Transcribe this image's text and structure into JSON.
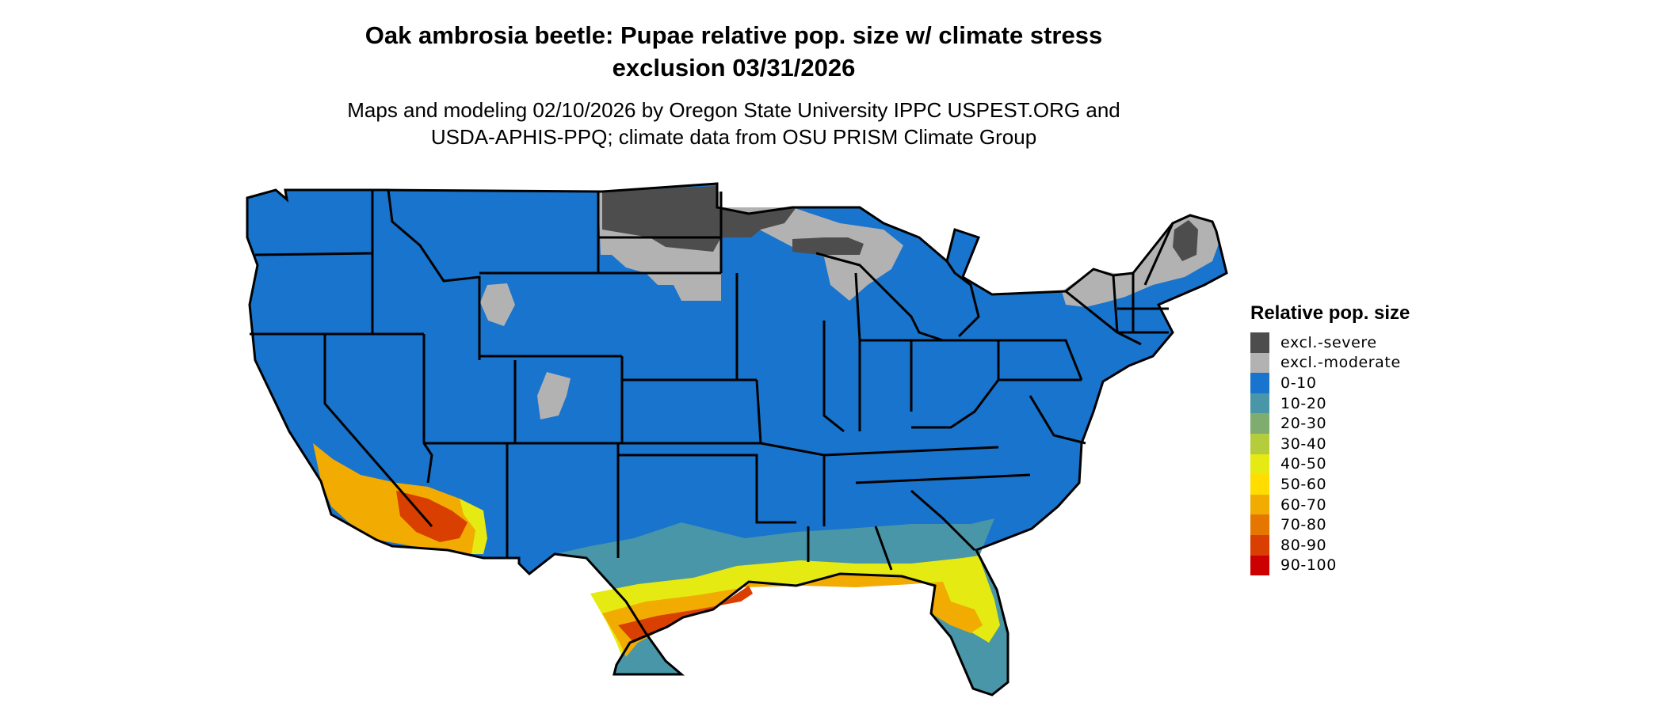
{
  "title": {
    "line1": "Oak ambrosia beetle: Pupae relative pop. size w/ climate stress",
    "line2": "exclusion 03/31/2026"
  },
  "subtitle": {
    "line1": "Maps and modeling 02/10/2026 by Oregon State University IPPC USPEST.ORG and",
    "line2": "USDA-APHIS-PPQ; climate data from OSU PRISM Climate Group"
  },
  "legend": {
    "title": "Relative pop. size",
    "items": [
      {
        "label": "excl.-severe",
        "color": "#4d4d4d"
      },
      {
        "label": "excl.-moderate",
        "color": "#b2b2b2"
      },
      {
        "label": "0-10",
        "color": "#1874cd"
      },
      {
        "label": "10-20",
        "color": "#4896a8"
      },
      {
        "label": "20-30",
        "color": "#7fad70"
      },
      {
        "label": "30-40",
        "color": "#b5cc3c"
      },
      {
        "label": "40-50",
        "color": "#e5ea12"
      },
      {
        "label": "50-60",
        "color": "#ffdd00"
      },
      {
        "label": "60-70",
        "color": "#f2ab00"
      },
      {
        "label": "70-80",
        "color": "#e57600"
      },
      {
        "label": "80-90",
        "color": "#d93f00"
      },
      {
        "label": "90-100",
        "color": "#cc0000"
      }
    ]
  }
}
